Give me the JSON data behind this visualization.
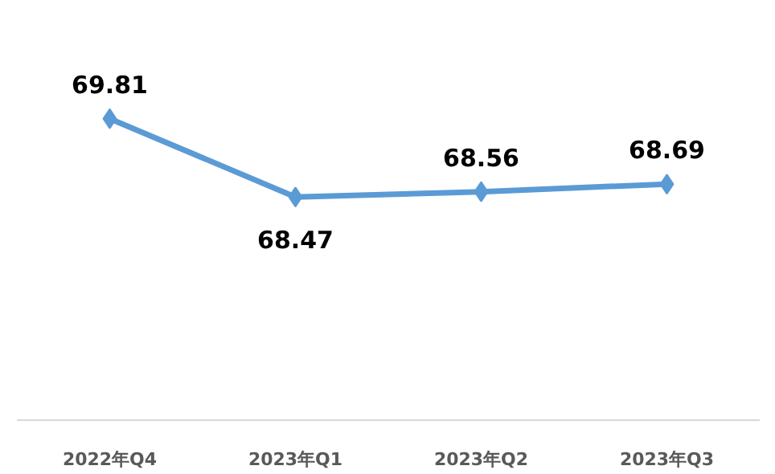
{
  "chart_data": {
    "type": "line",
    "categories": [
      "2022年Q4",
      "2023年Q1",
      "2023年Q2",
      "2023年Q3"
    ],
    "series": [
      {
        "color": "#5b9bd5",
        "values": [
          69.81,
          68.47,
          68.56,
          68.69
        ]
      }
    ],
    "tick_labels": "x",
    "data_labels": true,
    "marker": "diamond",
    "line_style": "solid"
  }
}
